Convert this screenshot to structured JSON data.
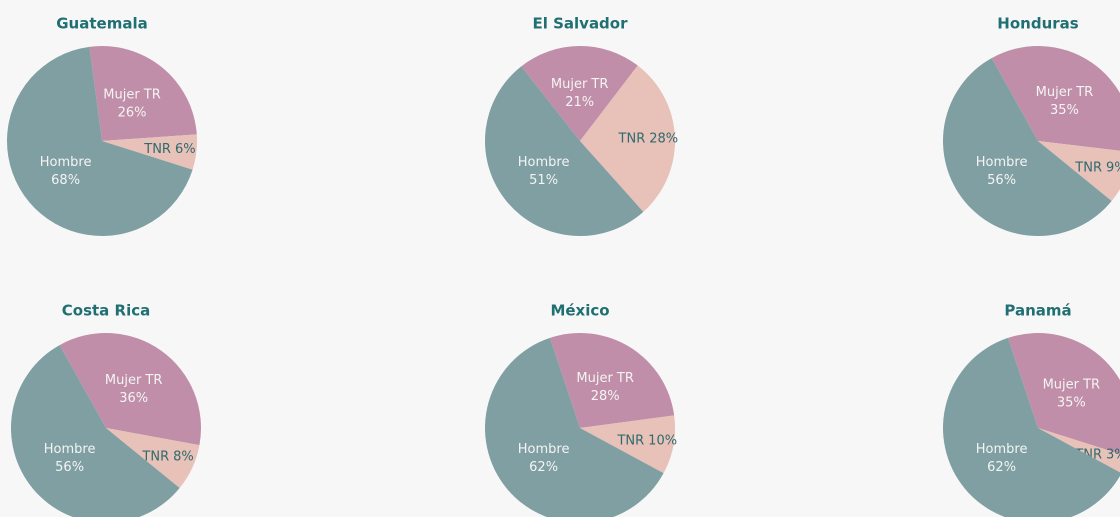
{
  "chart_data": [
    {
      "type": "pie",
      "title": "Guatemala",
      "categories": [
        "Hombre",
        "Mujer TR",
        "TNR"
      ],
      "values": [
        68,
        26,
        6
      ],
      "value_labels": [
        "68%",
        "26%",
        "6%"
      ],
      "colors": [
        "#7f9fa2",
        "#c08ea8",
        "#e8c1b8"
      ]
    },
    {
      "type": "pie",
      "title": "El Salvador",
      "categories": [
        "Hombre",
        "Mujer TR",
        "TNR"
      ],
      "values": [
        51,
        21,
        28
      ],
      "value_labels": [
        "51%",
        "21%",
        "28%"
      ],
      "colors": [
        "#7f9fa2",
        "#c08ea8",
        "#e8c1b8"
      ]
    },
    {
      "type": "pie",
      "title": "Honduras",
      "categories": [
        "Hombre",
        "Mujer TR",
        "TNR"
      ],
      "values": [
        56,
        35,
        9
      ],
      "value_labels": [
        "56%",
        "35%",
        "9%"
      ],
      "colors": [
        "#7f9fa2",
        "#c08ea8",
        "#e8c1b8"
      ]
    },
    {
      "type": "pie",
      "title": "Costa Rica",
      "categories": [
        "Hombre",
        "Mujer TR",
        "TNR"
      ],
      "values": [
        56,
        36,
        8
      ],
      "value_labels": [
        "56%",
        "36%",
        "8%"
      ],
      "colors": [
        "#7f9fa2",
        "#c08ea8",
        "#e8c1b8"
      ]
    },
    {
      "type": "pie",
      "title": "México",
      "categories": [
        "Hombre",
        "Mujer TR",
        "TNR"
      ],
      "values": [
        62,
        28,
        10
      ],
      "value_labels": [
        "62%",
        "28%",
        "10%"
      ],
      "colors": [
        "#7f9fa2",
        "#c08ea8",
        "#e8c1b8"
      ]
    },
    {
      "type": "pie",
      "title": "Panamá",
      "categories": [
        "Hombre",
        "Mujer TR",
        "TNR"
      ],
      "values": [
        62,
        35,
        3
      ],
      "value_labels": [
        "62%",
        "35%",
        "3%"
      ],
      "colors": [
        "#7f9fa2",
        "#c08ea8",
        "#e8c1b8"
      ]
    }
  ]
}
